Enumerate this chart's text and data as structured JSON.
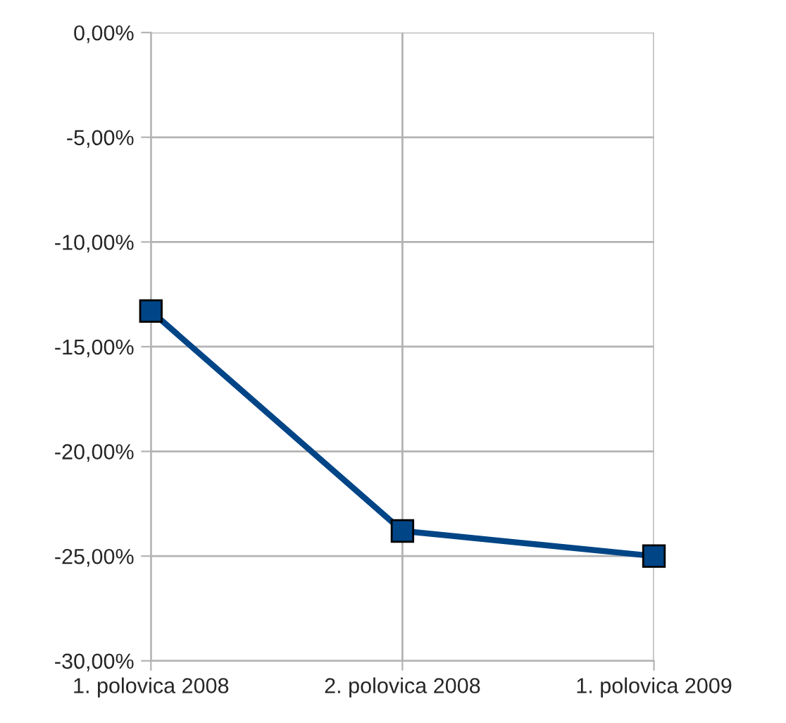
{
  "chart_data": {
    "type": "line",
    "categories": [
      "1. polovica 2008",
      "2. polovica 2008",
      "1. polovica 2009"
    ],
    "series": [
      {
        "color": "#004586",
        "values": [
          -13.3,
          -23.8,
          -25.0
        ]
      }
    ],
    "ylim": [
      -30,
      0
    ],
    "yticks": [
      {
        "value": 0,
        "label": "0,00%"
      },
      {
        "value": -5,
        "label": "-5,00%"
      },
      {
        "value": -10,
        "label": "-10,00%"
      },
      {
        "value": -15,
        "label": "-15,00%"
      },
      {
        "value": -20,
        "label": "-20,00%"
      },
      {
        "value": -25,
        "label": "-25,00%"
      },
      {
        "value": -30,
        "label": "-30,00%"
      }
    ],
    "grid": true,
    "marker": "square",
    "line_style": "solid"
  }
}
